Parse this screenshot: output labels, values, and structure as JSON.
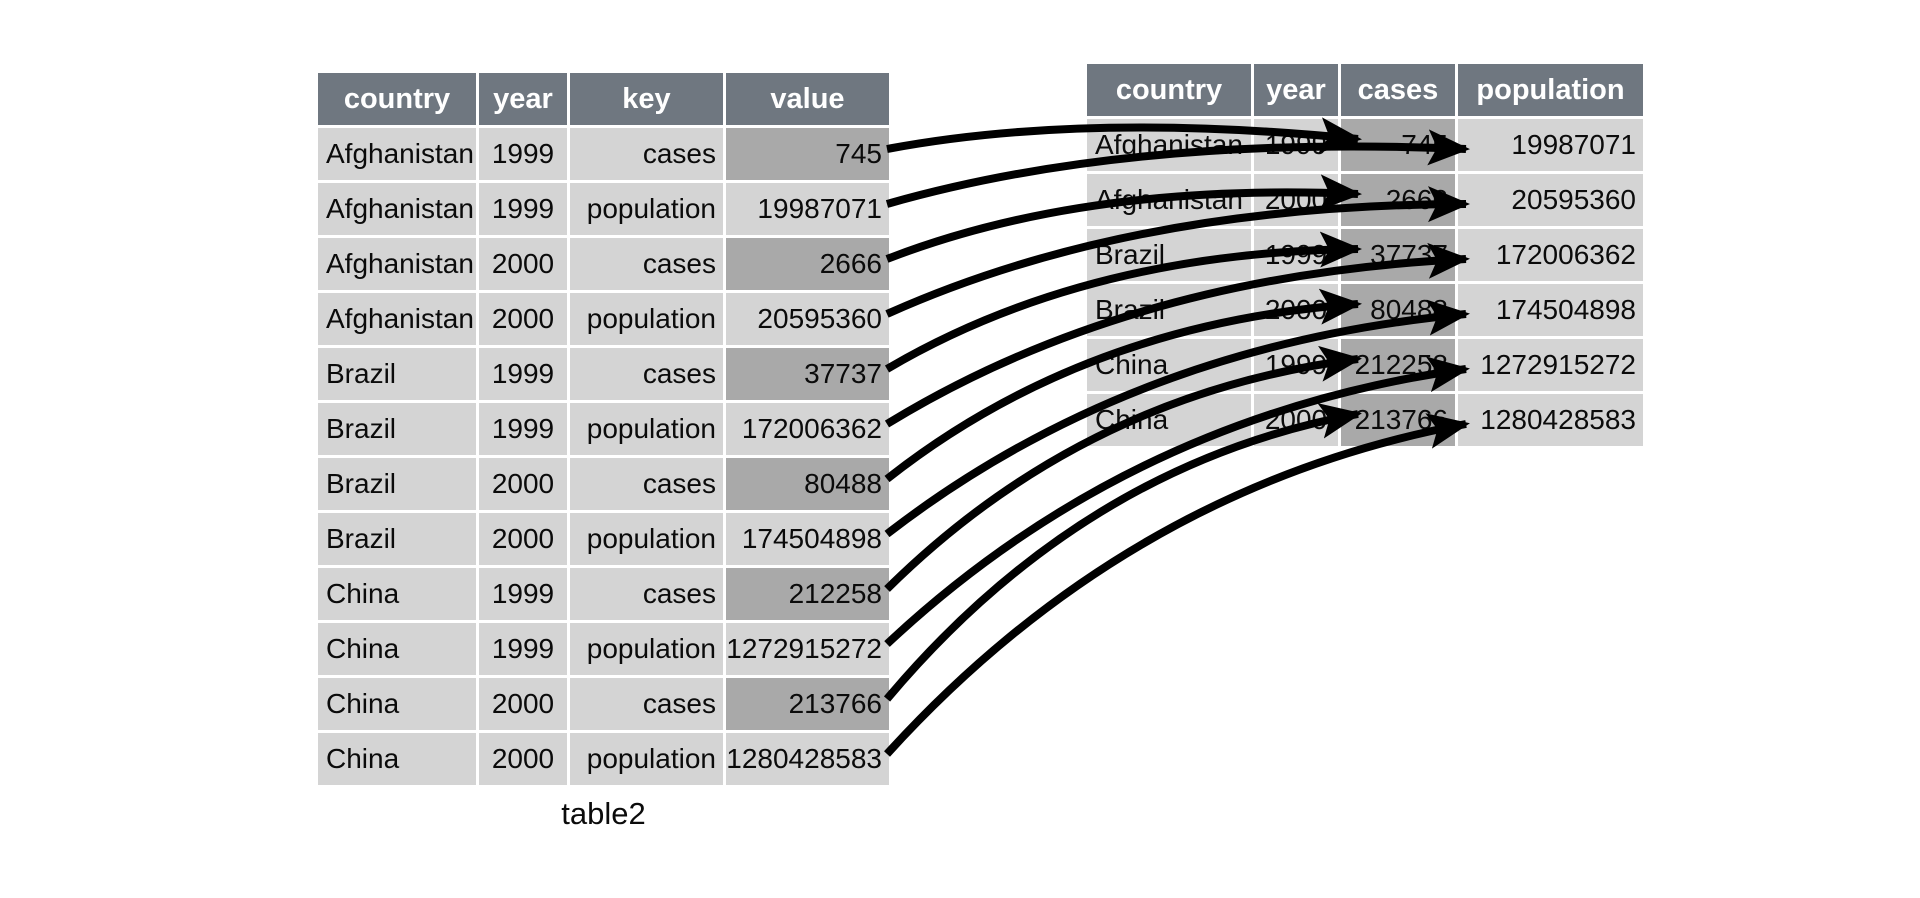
{
  "colors": {
    "background": "#ffffff",
    "header_bg": "#6f7780",
    "header_text": "#ffffff",
    "cell_bg": "#d4d4d4",
    "highlight_bg": "#a9a9a9",
    "cell_text": "#0b0b0b",
    "arrow": "#000000"
  },
  "left_table": {
    "caption": "table2",
    "columns": [
      "country",
      "year",
      "key",
      "value"
    ],
    "rows": [
      {
        "country": "Afghanistan",
        "year": "1999",
        "key": "cases",
        "value": "745",
        "value_highlight": true
      },
      {
        "country": "Afghanistan",
        "year": "1999",
        "key": "population",
        "value": "19987071",
        "value_highlight": false
      },
      {
        "country": "Afghanistan",
        "year": "2000",
        "key": "cases",
        "value": "2666",
        "value_highlight": true
      },
      {
        "country": "Afghanistan",
        "year": "2000",
        "key": "population",
        "value": "20595360",
        "value_highlight": false
      },
      {
        "country": "Brazil",
        "year": "1999",
        "key": "cases",
        "value": "37737",
        "value_highlight": true
      },
      {
        "country": "Brazil",
        "year": "1999",
        "key": "population",
        "value": "172006362",
        "value_highlight": false
      },
      {
        "country": "Brazil",
        "year": "2000",
        "key": "cases",
        "value": "80488",
        "value_highlight": true
      },
      {
        "country": "Brazil",
        "year": "2000",
        "key": "population",
        "value": "174504898",
        "value_highlight": false
      },
      {
        "country": "China",
        "year": "1999",
        "key": "cases",
        "value": "212258",
        "value_highlight": true
      },
      {
        "country": "China",
        "year": "1999",
        "key": "population",
        "value": "1272915272",
        "value_highlight": false
      },
      {
        "country": "China",
        "year": "2000",
        "key": "cases",
        "value": "213766",
        "value_highlight": true
      },
      {
        "country": "China",
        "year": "2000",
        "key": "population",
        "value": "1280428583",
        "value_highlight": false
      }
    ]
  },
  "right_table": {
    "columns": [
      "country",
      "year",
      "cases",
      "population"
    ],
    "highlight_column": "cases",
    "rows": [
      {
        "country": "Afghanistan",
        "year": "1999",
        "cases": "745",
        "population": "19987071"
      },
      {
        "country": "Afghanistan",
        "year": "2000",
        "cases": "2666",
        "population": "20595360"
      },
      {
        "country": "Brazil",
        "year": "1999",
        "cases": "37737",
        "population": "172006362"
      },
      {
        "country": "Brazil",
        "year": "2000",
        "cases": "80488",
        "population": "174504898"
      },
      {
        "country": "China",
        "year": "1999",
        "cases": "212258",
        "population": "1272915272"
      },
      {
        "country": "China",
        "year": "2000",
        "cases": "213766",
        "population": "1280428583"
      }
    ]
  },
  "arrows": [
    {
      "from_row": 0,
      "to_row": 0,
      "to_column": "cases"
    },
    {
      "from_row": 1,
      "to_row": 0,
      "to_column": "population"
    },
    {
      "from_row": 2,
      "to_row": 1,
      "to_column": "cases"
    },
    {
      "from_row": 3,
      "to_row": 1,
      "to_column": "population"
    },
    {
      "from_row": 4,
      "to_row": 2,
      "to_column": "cases"
    },
    {
      "from_row": 5,
      "to_row": 2,
      "to_column": "population"
    },
    {
      "from_row": 6,
      "to_row": 3,
      "to_column": "cases"
    },
    {
      "from_row": 7,
      "to_row": 3,
      "to_column": "population"
    },
    {
      "from_row": 8,
      "to_row": 4,
      "to_column": "cases"
    },
    {
      "from_row": 9,
      "to_row": 4,
      "to_column": "population"
    },
    {
      "from_row": 10,
      "to_row": 5,
      "to_column": "cases"
    },
    {
      "from_row": 11,
      "to_row": 5,
      "to_column": "population"
    }
  ]
}
